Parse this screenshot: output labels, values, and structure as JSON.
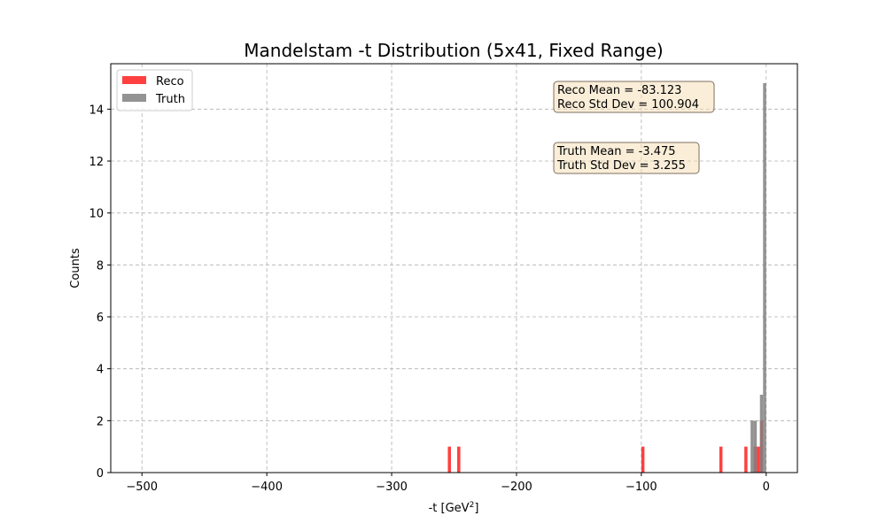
{
  "chart_data": {
    "type": "bar",
    "title": "Mandelstam -t Distribution (5x41, Fixed Range)",
    "xlabel_main": "-t [GeV",
    "xlabel_sup": "2",
    "xlabel_close": "]",
    "ylabel": "Counts",
    "xlim": [
      -525,
      25
    ],
    "ylim": [
      0,
      15.75
    ],
    "xticks": [
      -500,
      -400,
      -300,
      -200,
      -100,
      0
    ],
    "xtick_labels": [
      "−500",
      "−400",
      "−300",
      "−200",
      "−100",
      "0"
    ],
    "yticks": [
      0,
      2,
      4,
      6,
      8,
      10,
      12,
      14
    ],
    "ytick_labels": [
      "0",
      "2",
      "4",
      "6",
      "8",
      "10",
      "12",
      "14"
    ],
    "grid": true,
    "legend_position": "top-left",
    "bin_width": 2.5,
    "series": [
      {
        "name": "Reco",
        "color": "#ff0000",
        "opacity": 0.75,
        "bins": [
          {
            "x0": -255,
            "count": 1
          },
          {
            "x0": -247.5,
            "count": 1
          },
          {
            "x0": -100,
            "count": 1
          },
          {
            "x0": -37.5,
            "count": 1
          },
          {
            "x0": -17.5,
            "count": 1
          },
          {
            "x0": -10,
            "count": 1
          },
          {
            "x0": -7.5,
            "count": 1
          },
          {
            "x0": -5,
            "count": 2
          }
        ]
      },
      {
        "name": "Truth",
        "color": "#808080",
        "opacity": 0.85,
        "bins": [
          {
            "x0": -12.5,
            "count": 2
          },
          {
            "x0": -10,
            "count": 2
          },
          {
            "x0": -5,
            "count": 3
          },
          {
            "x0": -2.5,
            "count": 15
          }
        ]
      }
    ],
    "annotations": [
      {
        "lines": [
          "Reco Mean = -83.123",
          "Reco Std Dev = 100.904"
        ]
      },
      {
        "lines": [
          "Truth Mean = -3.475",
          "Truth Std Dev = 3.255"
        ]
      }
    ],
    "annotation_box_fill": "#f5deb3",
    "annotation_box_edge": "#7f6f5f"
  }
}
